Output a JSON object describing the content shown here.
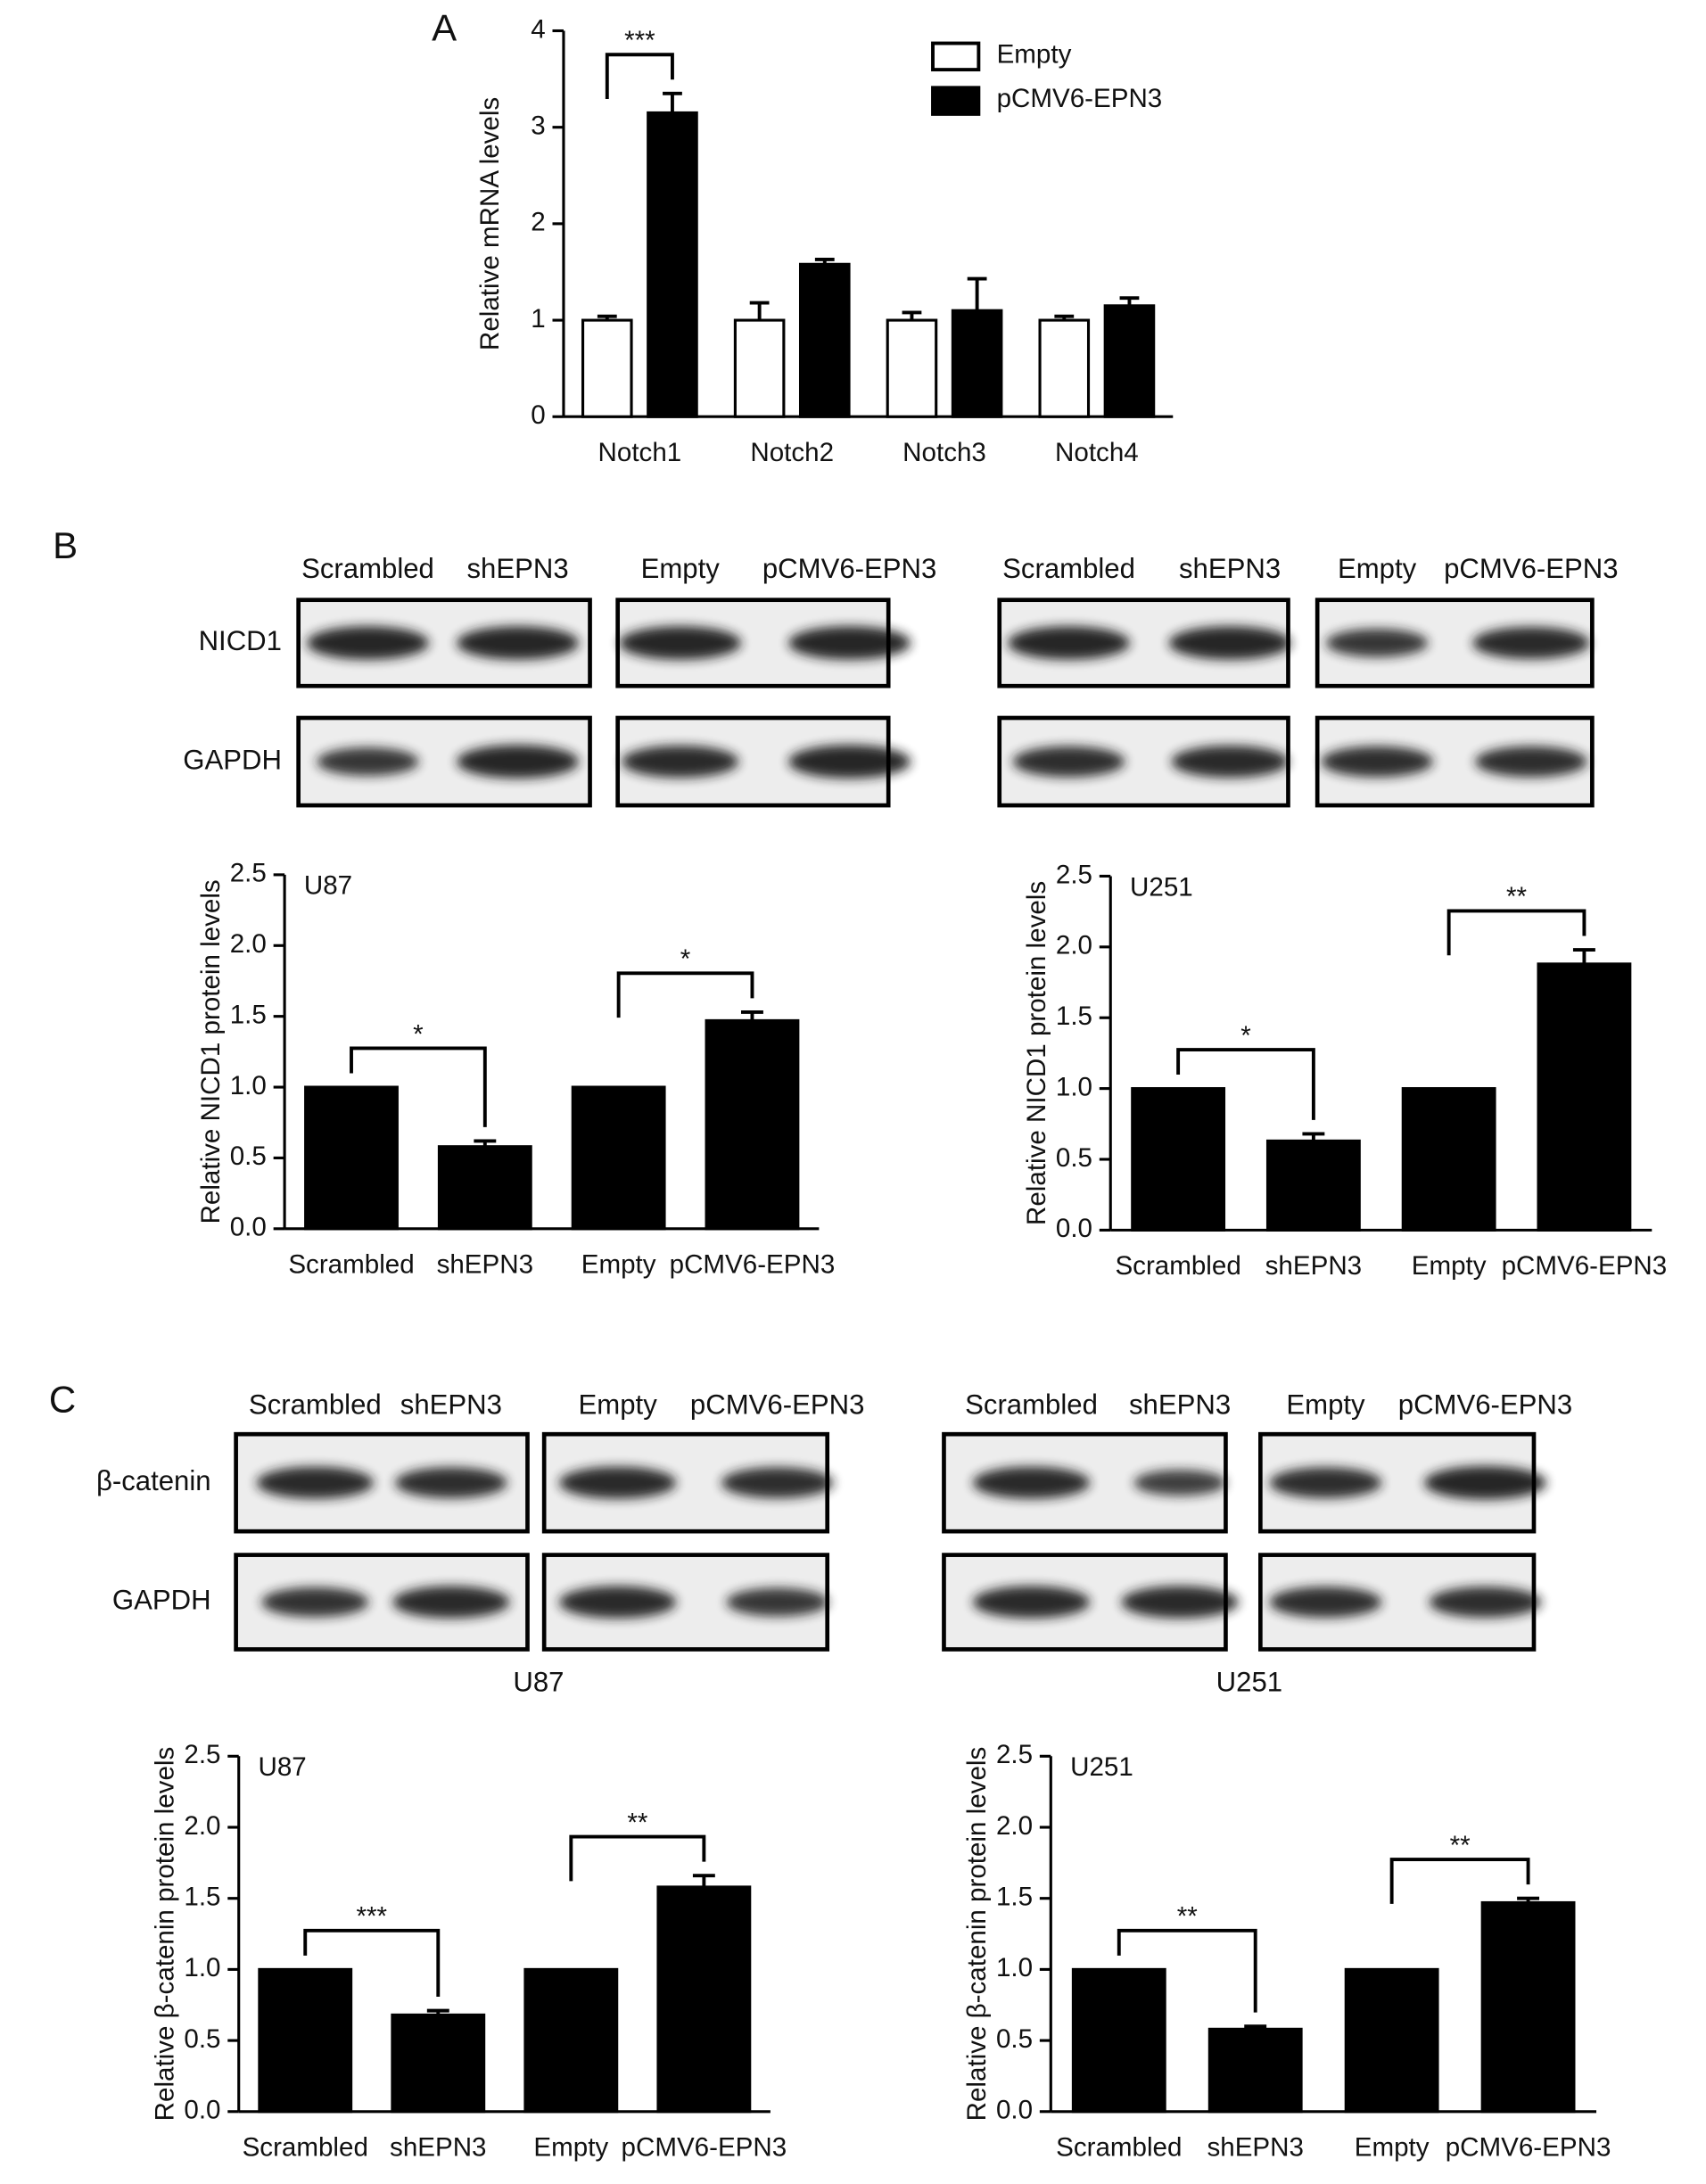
{
  "panel_labels": [
    "A",
    "B",
    "C"
  ],
  "blot_rows": [
    {
      "row_labels": [
        "NICD1",
        "GAPDH"
      ],
      "blots": [
        {
          "columns": [
            "Scrambled",
            "shEPN3"
          ]
        },
        {
          "columns": [
            "Empty",
            "pCMV6-EPN3"
          ]
        },
        {
          "columns": [
            "Scrambled",
            "shEPN3"
          ]
        },
        {
          "columns": [
            "Empty",
            "pCMV6-EPN3"
          ]
        }
      ]
    },
    {
      "row_labels": [
        "β-catenin",
        "GAPDH"
      ],
      "blots": [
        {
          "columns": [
            "Scrambled",
            "shEPN3"
          ]
        },
        {
          "columns": [
            "Empty",
            "pCMV6-EPN3"
          ]
        },
        {
          "columns": [
            "Scrambled",
            "shEPN3"
          ]
        },
        {
          "columns": [
            "Empty",
            "pCMV6-EPN3"
          ]
        }
      ],
      "captions": [
        "U87",
        "U251"
      ]
    }
  ],
  "chart_data": [
    {
      "type": "bar",
      "y_label": "Relative mRNA levels",
      "categories": [
        "Notch1",
        "Notch2",
        "Notch3",
        "Notch4"
      ],
      "series": [
        {
          "name": "Empty",
          "color": "#ffffff",
          "values": [
            1.0,
            1.0,
            1.0,
            1.0
          ],
          "errors": [
            0.04,
            0.18,
            0.08,
            0.04
          ]
        },
        {
          "name": "pCMV6-EPN3",
          "color": "#000000",
          "values": [
            3.15,
            1.58,
            1.1,
            1.15
          ],
          "errors": [
            0.2,
            0.05,
            0.33,
            0.08
          ]
        }
      ],
      "ylim": [
        0,
        4
      ],
      "yticks": [
        0,
        1,
        2,
        3,
        4
      ],
      "legend": "upper right",
      "annotations": [
        {
          "text": "***",
          "categories": [
            "Notch1"
          ]
        }
      ]
    },
    {
      "type": "bar",
      "y_label": "Relative NICD1 protein levels",
      "label": "U87",
      "categories": [
        "Scrambled",
        "shEPN3",
        "Empty",
        "pCMV6-EPN3"
      ],
      "color": "#000000",
      "values": [
        1.0,
        0.58,
        1.0,
        1.47
      ],
      "errors": [
        null,
        0.04,
        null,
        0.06
      ],
      "ylim": [
        0,
        2.5
      ],
      "yticks": [
        {
          "value": 0,
          "label": "0.0"
        },
        0.5,
        {
          "value": 1,
          "label": "1.0"
        },
        1.5,
        {
          "value": 2,
          "label": "2.0"
        },
        2.5
      ],
      "annotations": [
        {
          "text": "*",
          "categories": [
            "Scrambled",
            "shEPN3"
          ]
        },
        {
          "text": "*",
          "categories": [
            "Empty",
            "pCMV6-EPN3"
          ]
        }
      ]
    },
    {
      "type": "bar",
      "y_label": "Relative NICD1 protein levels",
      "label": "U251",
      "categories": [
        "Scrambled",
        "shEPN3",
        "Empty",
        "pCMV6-EPN3"
      ],
      "color": "#000000",
      "values": [
        1.0,
        0.63,
        1.0,
        1.88
      ],
      "errors": [
        null,
        0.05,
        null,
        0.1
      ],
      "ylim": [
        0,
        2.5
      ],
      "yticks": [
        {
          "value": 0,
          "label": "0.0"
        },
        0.5,
        {
          "value": 1,
          "label": "1.0"
        },
        1.5,
        {
          "value": 2,
          "label": "2.0"
        },
        2.5
      ],
      "annotations": [
        {
          "text": "*",
          "categories": [
            "Scrambled",
            "shEPN3"
          ]
        },
        {
          "text": "**",
          "categories": [
            "Empty",
            "pCMV6-EPN3"
          ]
        }
      ]
    },
    {
      "type": "bar",
      "y_label": "Relative β-catenin protein levels",
      "label": "U87",
      "categories": [
        "Scrambled",
        "shEPN3",
        "Empty",
        "pCMV6-EPN3"
      ],
      "color": "#000000",
      "values": [
        1.0,
        0.68,
        1.0,
        1.58
      ],
      "errors": [
        null,
        0.03,
        null,
        0.08
      ],
      "ylim": [
        0,
        2.5
      ],
      "yticks": [
        {
          "value": 0,
          "label": "0.0"
        },
        0.5,
        {
          "value": 1,
          "label": "1.0"
        },
        1.5,
        {
          "value": 2,
          "label": "2.0"
        },
        2.5
      ],
      "annotations": [
        {
          "text": "***",
          "categories": [
            "Scrambled",
            "shEPN3"
          ]
        },
        {
          "text": "**",
          "categories": [
            "Empty",
            "pCMV6-EPN3"
          ]
        }
      ]
    },
    {
      "type": "bar",
      "y_label": "Relative β-catenin protein levels",
      "label": "U251",
      "categories": [
        "Scrambled",
        "shEPN3",
        "Empty",
        "pCMV6-EPN3"
      ],
      "color": "#000000",
      "values": [
        1.0,
        0.58,
        1.0,
        1.47
      ],
      "errors": [
        null,
        0.02,
        null,
        0.03
      ],
      "ylim": [
        0,
        2.5
      ],
      "yticks": [
        {
          "value": 0,
          "label": "0.0"
        },
        0.5,
        {
          "value": 1,
          "label": "1.0"
        },
        1.5,
        {
          "value": 2,
          "label": "2.0"
        },
        2.5
      ],
      "annotations": [
        {
          "text": "**",
          "categories": [
            "Scrambled",
            "shEPN3"
          ]
        },
        {
          "text": "**",
          "categories": [
            "Empty",
            "pCMV6-EPN3"
          ]
        }
      ]
    }
  ]
}
